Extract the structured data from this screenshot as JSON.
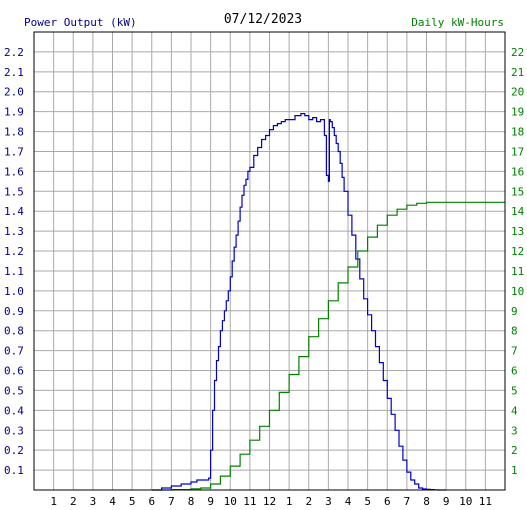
{
  "chart_data": {
    "type": "line",
    "title": "07/12/2023",
    "ylabel": "Power Output (kW)",
    "y2label": "Daily kW-Hours",
    "ylim": [
      0,
      2.3
    ],
    "y2lim": [
      0,
      23
    ],
    "xlim": [
      0,
      24
    ],
    "grid": true,
    "x_tick_labels": [
      "1",
      "2",
      "3",
      "4",
      "5",
      "6",
      "7",
      "8",
      "9",
      "10",
      "11",
      "12",
      "1",
      "2",
      "3",
      "4",
      "5",
      "6",
      "7",
      "8",
      "9",
      "10",
      "11"
    ],
    "y_tick_labels": [
      "0.1",
      "0.2",
      "0.3",
      "0.4",
      "0.5",
      "0.6",
      "0.7",
      "0.8",
      "0.9",
      "1.0",
      "1.1",
      "1.2",
      "1.3",
      "1.4",
      "1.5",
      "1.6",
      "1.7",
      "1.8",
      "1.9",
      "2.0",
      "2.1",
      "2.2"
    ],
    "y2_tick_labels": [
      "1",
      "2",
      "3",
      "4",
      "5",
      "6",
      "7",
      "8",
      "9",
      "10",
      "11",
      "12",
      "13",
      "14",
      "15",
      "16",
      "17",
      "18",
      "19",
      "20",
      "21",
      "22"
    ],
    "colors": {
      "power": "#0000cd",
      "energy": "#008000",
      "grid": "#a9a9a9"
    },
    "series": [
      {
        "axis": "left",
        "x": [
          6.0,
          6.5,
          7.0,
          7.5,
          8.0,
          8.3,
          8.7,
          8.9,
          9.0,
          9.1,
          9.2,
          9.3,
          9.4,
          9.5,
          9.6,
          9.7,
          9.8,
          9.9,
          10.0,
          10.1,
          10.2,
          10.3,
          10.4,
          10.5,
          10.6,
          10.7,
          10.8,
          10.9,
          11.0,
          11.2,
          11.4,
          11.6,
          11.8,
          12.0,
          12.2,
          12.4,
          12.6,
          12.8,
          13.0,
          13.3,
          13.6,
          13.8,
          14.0,
          14.2,
          14.4,
          14.6,
          14.8,
          14.9,
          15.0,
          15.05,
          15.1,
          15.2,
          15.3,
          15.4,
          15.5,
          15.6,
          15.7,
          15.8,
          16.0,
          16.2,
          16.4,
          16.6,
          16.8,
          17.0,
          17.2,
          17.4,
          17.6,
          17.8,
          18.0,
          18.2,
          18.4,
          18.6,
          18.8,
          19.0,
          19.2,
          19.4,
          19.6,
          19.8,
          20.0,
          20.2,
          20.4,
          20.6,
          21.0
        ],
        "y": [
          0.0,
          0.01,
          0.02,
          0.03,
          0.04,
          0.05,
          0.05,
          0.06,
          0.2,
          0.4,
          0.55,
          0.65,
          0.72,
          0.8,
          0.85,
          0.9,
          0.95,
          1.0,
          1.07,
          1.15,
          1.22,
          1.28,
          1.35,
          1.42,
          1.48,
          1.53,
          1.56,
          1.6,
          1.62,
          1.68,
          1.72,
          1.76,
          1.78,
          1.81,
          1.83,
          1.84,
          1.85,
          1.86,
          1.86,
          1.88,
          1.89,
          1.88,
          1.86,
          1.87,
          1.85,
          1.86,
          1.78,
          1.58,
          1.55,
          1.86,
          1.85,
          1.82,
          1.78,
          1.74,
          1.7,
          1.64,
          1.57,
          1.5,
          1.38,
          1.28,
          1.16,
          1.06,
          0.96,
          0.88,
          0.8,
          0.72,
          0.64,
          0.55,
          0.46,
          0.38,
          0.3,
          0.22,
          0.15,
          0.09,
          0.05,
          0.03,
          0.01,
          0.005,
          0.003,
          0.002,
          0.001,
          0.0,
          0.0
        ]
      },
      {
        "axis": "right",
        "x": [
          6.0,
          7.0,
          8.0,
          8.5,
          9.0,
          9.5,
          10.0,
          10.5,
          11.0,
          11.5,
          12.0,
          12.5,
          13.0,
          13.5,
          14.0,
          14.5,
          15.0,
          15.5,
          16.0,
          16.5,
          17.0,
          17.5,
          18.0,
          18.5,
          19.0,
          19.5,
          20.0,
          21.0,
          22.0,
          23.0,
          24.0
        ],
        "y": [
          0.0,
          0.02,
          0.06,
          0.1,
          0.3,
          0.7,
          1.2,
          1.8,
          2.5,
          3.2,
          4.0,
          4.9,
          5.8,
          6.7,
          7.7,
          8.6,
          9.5,
          10.4,
          11.2,
          12.0,
          12.7,
          13.3,
          13.8,
          14.1,
          14.3,
          14.4,
          14.45,
          14.45,
          14.45,
          14.45,
          14.45
        ]
      }
    ]
  }
}
